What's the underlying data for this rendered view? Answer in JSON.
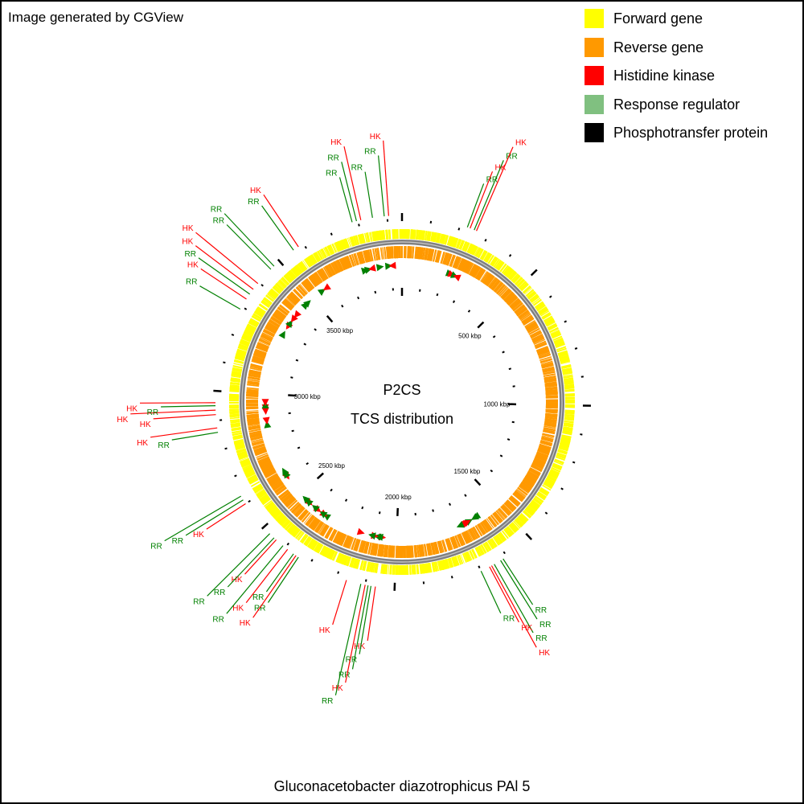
{
  "credit": "Image generated by CGView",
  "legend": {
    "items": [
      {
        "label": "Forward gene",
        "color": "#ffff00"
      },
      {
        "label": "Reverse gene",
        "color": "#ff9900"
      },
      {
        "label": "Histidine kinase",
        "color": "#ff0000"
      },
      {
        "label": "Response regulator",
        "color": "#80c080"
      },
      {
        "label": "Phosphotransfer protein",
        "color": "#000000"
      }
    ]
  },
  "map": {
    "title_line1": "P2CS",
    "title_line2": "TCS distribution",
    "organism": "Gluconacetobacter diazotrophicus PAl 5",
    "genome_length_kbp": 3950,
    "scale_labels": [
      {
        "kbp": 500,
        "label": "500 kbp"
      },
      {
        "kbp": 1000,
        "label": "1000 kbp"
      },
      {
        "kbp": 1500,
        "label": "1500 kbp"
      },
      {
        "kbp": 2000,
        "label": "2000 kbp"
      },
      {
        "kbp": 2500,
        "label": "2500 kbp"
      },
      {
        "kbp": 3000,
        "label": "3000 kbp"
      },
      {
        "kbp": 3500,
        "label": "3500 kbp"
      }
    ],
    "track_colors": {
      "forward": "#ffff00",
      "reverse": "#ff9900",
      "backbone": "#808080",
      "hk": "#ff0000",
      "rr": "#008000",
      "tick": "#000000"
    },
    "features": [
      {
        "kbp": 225,
        "type": "RR",
        "text": "RR",
        "strand": "+"
      },
      {
        "kbp": 235,
        "type": "HK",
        "text": "HK",
        "strand": "+"
      },
      {
        "kbp": 250,
        "type": "RR",
        "text": "RR",
        "strand": "+"
      },
      {
        "kbp": 258,
        "type": "HK",
        "text": "HK",
        "strand": "-"
      },
      {
        "kbp": 1615,
        "type": "RR",
        "text": "RR",
        "strand": "+"
      },
      {
        "kbp": 1625,
        "type": "RR",
        "text": "RR",
        "strand": "+"
      },
      {
        "kbp": 1650,
        "type": "RR",
        "text": "RR",
        "strand": "-"
      },
      {
        "kbp": 1660,
        "type": "HK",
        "text": "HK",
        "strand": "-"
      },
      {
        "kbp": 1668,
        "type": "HK",
        "text": "HK",
        "strand": "-"
      },
      {
        "kbp": 1700,
        "type": "RR",
        "text": "RR",
        "strand": "+"
      },
      {
        "kbp": 2065,
        "type": "HK",
        "text": "HK",
        "strand": "-"
      },
      {
        "kbp": 2080,
        "type": "RR",
        "text": "RR",
        "strand": "+"
      },
      {
        "kbp": 2090,
        "type": "RR",
        "text": "RR",
        "strand": "+"
      },
      {
        "kbp": 2100,
        "type": "HK",
        "text": "HK",
        "strand": "-"
      },
      {
        "kbp": 2115,
        "type": "RR",
        "text": "RR",
        "strand": "+"
      },
      {
        "kbp": 2165,
        "type": "HK",
        "text": "HK",
        "strand": "-"
      },
      {
        "kbp": 2345,
        "type": "RR",
        "text": "RR",
        "strand": "+"
      },
      {
        "kbp": 2355,
        "type": "HK",
        "text": "HK",
        "strand": "-"
      },
      {
        "kbp": 2365,
        "type": "RR",
        "text": "RR",
        "strand": "+"
      },
      {
        "kbp": 2390,
        "type": "HK",
        "text": "HK",
        "strand": "-"
      },
      {
        "kbp": 2410,
        "type": "RR",
        "text": "RR",
        "strand": "+"
      },
      {
        "kbp": 2440,
        "type": "HK",
        "text": "HK",
        "strand": "-"
      },
      {
        "kbp": 2450,
        "type": "RR",
        "text": "RR",
        "strand": "+"
      },
      {
        "kbp": 2470,
        "type": "RR",
        "text": "RR",
        "strand": "+"
      },
      {
        "kbp": 2600,
        "type": "HK",
        "text": "HK",
        "strand": "-"
      },
      {
        "kbp": 2615,
        "type": "RR",
        "text": "RR",
        "strand": "+"
      },
      {
        "kbp": 2630,
        "type": "RR",
        "text": "RR",
        "strand": "+"
      },
      {
        "kbp": 2860,
        "type": "RR",
        "text": "RR",
        "strand": "+"
      },
      {
        "kbp": 2875,
        "type": "HK",
        "text": "HK",
        "strand": "-"
      },
      {
        "kbp": 2920,
        "type": "HK",
        "text": "HK",
        "strand": "-"
      },
      {
        "kbp": 2935,
        "type": "HK",
        "text": "HK",
        "strand": "-"
      },
      {
        "kbp": 2950,
        "type": "RR",
        "text": "RR",
        "strand": "+"
      },
      {
        "kbp": 2960,
        "type": "HK",
        "text": "HK",
        "strand": "-"
      },
      {
        "kbp": 3290,
        "type": "RR",
        "text": "RR",
        "strand": "+"
      },
      {
        "kbp": 3330,
        "type": "HK",
        "text": "HK",
        "strand": "-"
      },
      {
        "kbp": 3350,
        "type": "RR",
        "text": "RR",
        "strand": "+"
      },
      {
        "kbp": 3370,
        "type": "HK",
        "text": "HK",
        "strand": "-"
      },
      {
        "kbp": 3395,
        "type": "HK",
        "text": "HK",
        "strand": "-"
      },
      {
        "kbp": 3460,
        "type": "RR",
        "text": "RR",
        "strand": "+"
      },
      {
        "kbp": 3475,
        "type": "RR",
        "text": "RR",
        "strand": "+"
      },
      {
        "kbp": 3560,
        "type": "RR",
        "text": "RR",
        "strand": "+"
      },
      {
        "kbp": 3580,
        "type": "HK",
        "text": "HK",
        "strand": "-"
      },
      {
        "kbp": 3780,
        "type": "RR",
        "text": "RR",
        "strand": "+"
      },
      {
        "kbp": 3795,
        "type": "RR",
        "text": "RR",
        "strand": "+"
      },
      {
        "kbp": 3810,
        "type": "HK",
        "text": "HK",
        "strand": "-"
      },
      {
        "kbp": 3850,
        "type": "RR",
        "text": "RR",
        "strand": "+"
      },
      {
        "kbp": 3890,
        "type": "RR",
        "text": "RR",
        "strand": "+"
      },
      {
        "kbp": 3905,
        "type": "HK",
        "text": "HK",
        "strand": "-"
      }
    ]
  }
}
